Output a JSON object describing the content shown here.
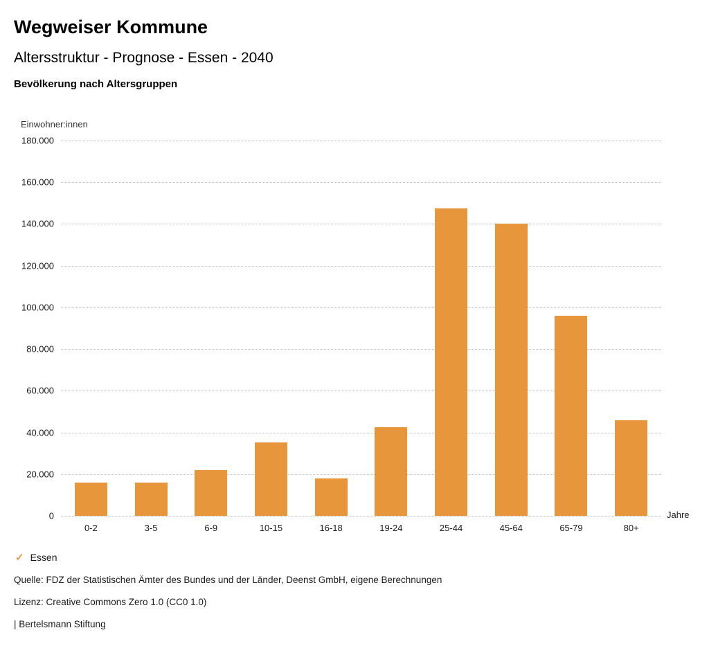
{
  "header": {
    "title": "Wegweiser Kommune",
    "subtitle": "Altersstruktur - Prognose - Essen - 2040",
    "chart_heading": "Bevölkerung nach Altersgruppen"
  },
  "chart_data": {
    "type": "bar",
    "title": "Bevölkerung nach Altersgruppen",
    "categories": [
      "0-2",
      "3-5",
      "6-9",
      "10-15",
      "16-18",
      "19-24",
      "25-44",
      "45-64",
      "65-79",
      "80+"
    ],
    "values": [
      15800,
      16100,
      22000,
      35300,
      18100,
      42400,
      147500,
      140000,
      96000,
      45800
    ],
    "series_name": "Essen",
    "xlabel": "Jahre",
    "ylabel": "Einwohner:innen",
    "ylim": [
      0,
      180000
    ],
    "ytick_step": 20000,
    "grid": true,
    "gridline_style": "dotted",
    "bar_color": "#E8963C",
    "legend_position": "bottom-left",
    "number_format": "de-DE"
  },
  "legend": {
    "check_icon": "✓",
    "label": "Essen",
    "color": "#E8963C"
  },
  "footer": {
    "source": "Quelle: FDZ der Statistischen Ämter des Bundes und der Länder, Deenst GmbH, eigene Berechnungen",
    "license": "Lizenz: Creative Commons Zero 1.0 (CC0 1.0)",
    "attribution": "| Bertelsmann Stiftung"
  }
}
